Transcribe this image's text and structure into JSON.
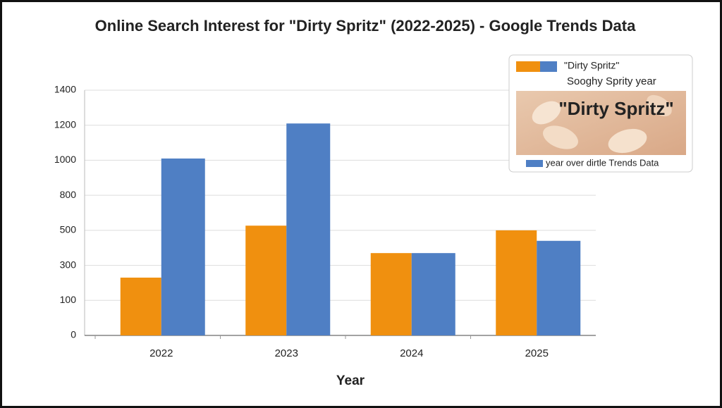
{
  "chart_data": {
    "type": "bar",
    "title": "Online Search Interest for \"Dirty Spritz\" (2022-2025) - Google Trends Data",
    "x_label": "Year",
    "categories": [
      "2022",
      "2023",
      "2024",
      "2025"
    ],
    "series": [
      {
        "name": "\"Dirty Spritz\"",
        "color": "#f0900f",
        "values": [
          230,
          540,
          370,
          500
        ]
      },
      {
        "name": "year over dirtle Trends Data",
        "color": "#4f7fc4",
        "values": [
          1010,
          1210,
          370,
          440
        ]
      }
    ],
    "ylim": [
      0,
      1400
    ],
    "yticks": [
      0,
      100,
      300,
      500,
      800,
      1000,
      1200,
      1400
    ],
    "grid": true,
    "legend": {
      "subtitle": "Sooghy Sprity year",
      "image_text": "\"Dirty Spritz\"",
      "position": "upper right"
    }
  }
}
